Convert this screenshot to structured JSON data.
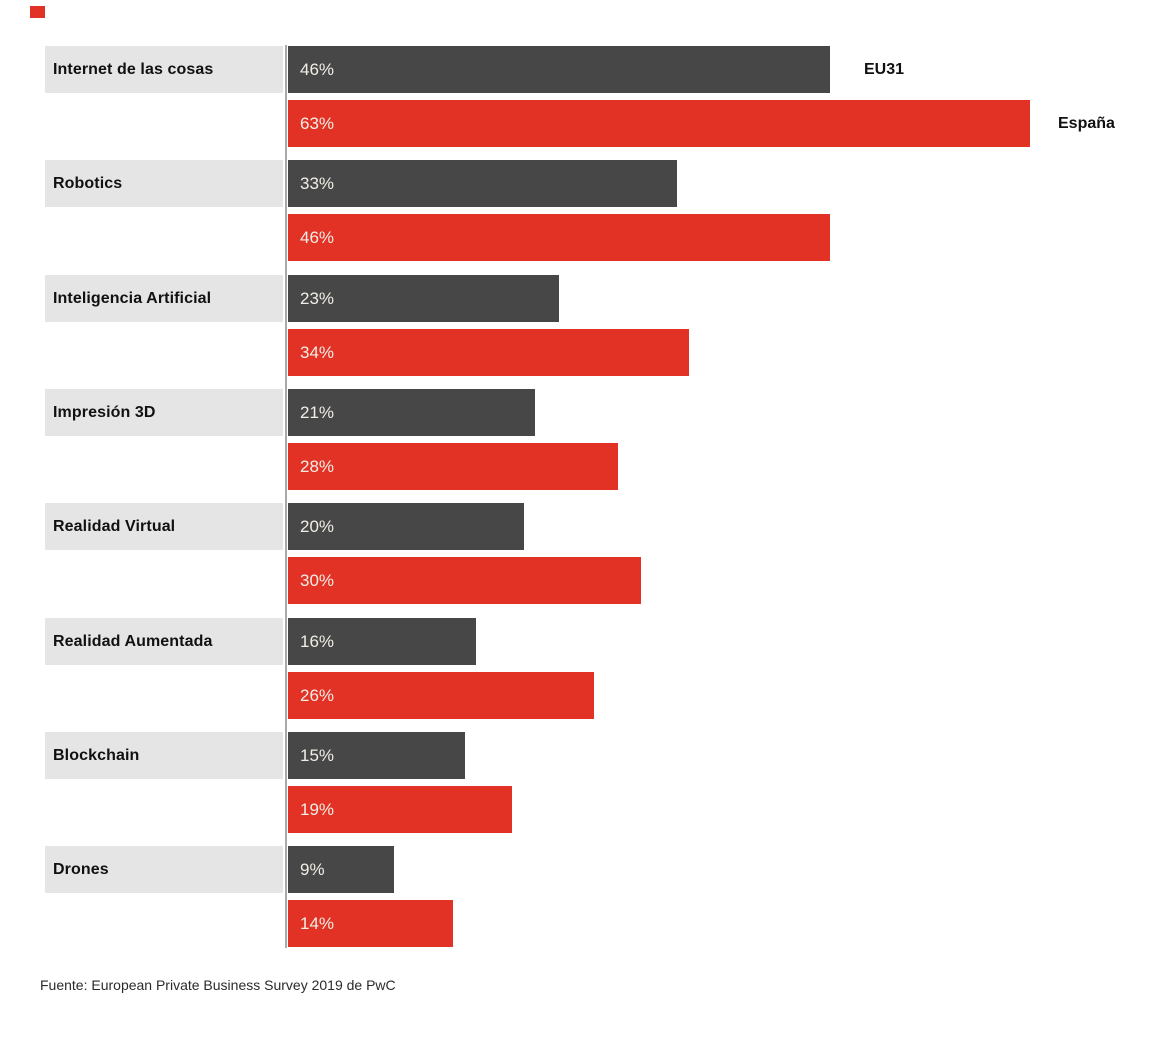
{
  "chart_data": {
    "type": "bar",
    "orientation": "horizontal",
    "title": "",
    "categories": [
      "Internet de las cosas",
      "Robotics",
      "Inteligencia Artificial",
      "Impresión 3D",
      "Realidad Virtual",
      "Realidad Aumentada",
      "Blockchain",
      "Drones"
    ],
    "series": [
      {
        "name": "EU31",
        "color": "#474747",
        "values": [
          46,
          33,
          23,
          21,
          20,
          16,
          15,
          9
        ]
      },
      {
        "name": "España",
        "color": "#e23226",
        "values": [
          63,
          46,
          34,
          28,
          30,
          26,
          19,
          14
        ]
      }
    ],
    "value_suffix": "%",
    "xlim": [
      0,
      63
    ],
    "grid": false,
    "legend_position": "right of first category bars",
    "value_labels": "inside bar start, light text"
  },
  "legend": {
    "eu31_label": "EU31",
    "espana_label": "España"
  },
  "footer": {
    "source": "Fuente: European Private Business Survey 2019 de PwC"
  },
  "colors": {
    "eu31_bar": "#474747",
    "espana_bar": "#e23226",
    "label_band": "#e5e5e5",
    "value_text": "#f1eee6",
    "axis_line": "#a9a9a9",
    "accent_square": "#e23226",
    "background": "#ffffff"
  }
}
